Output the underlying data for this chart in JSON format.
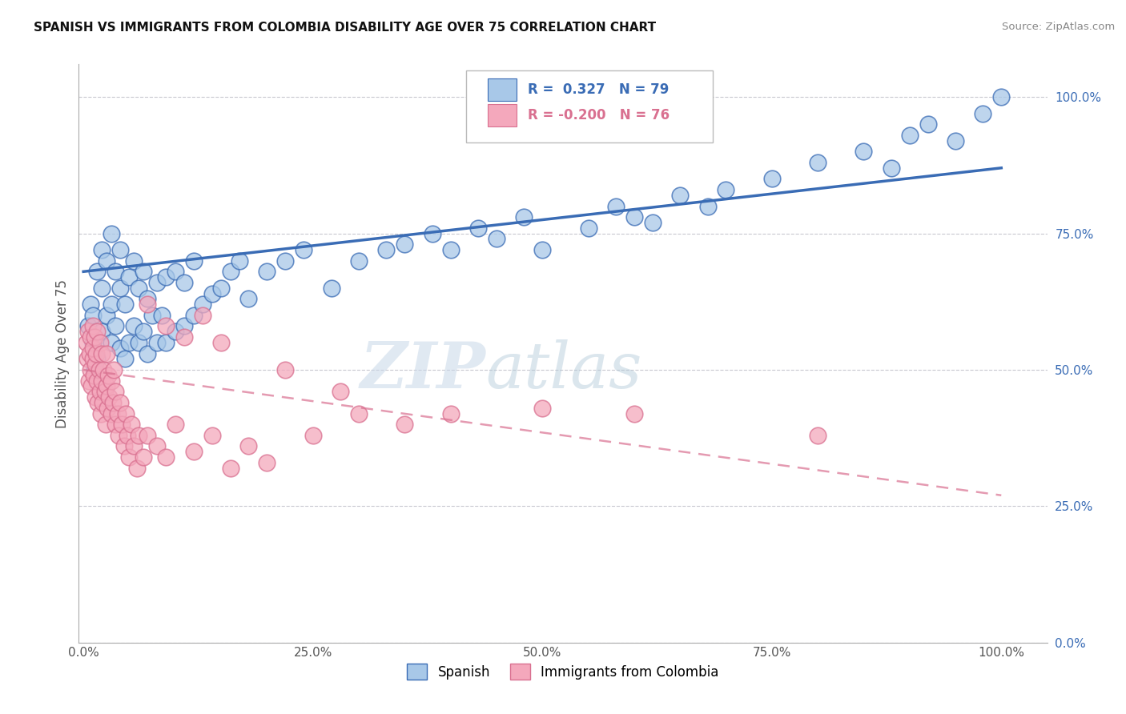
{
  "title": "SPANISH VS IMMIGRANTS FROM COLOMBIA DISABILITY AGE OVER 75 CORRELATION CHART",
  "source": "Source: ZipAtlas.com",
  "ylabel": "Disability Age Over 75",
  "legend_label1": "Spanish",
  "legend_label2": "Immigrants from Colombia",
  "R1": 0.327,
  "N1": 79,
  "R2": -0.2,
  "N2": 76,
  "color_blue": "#a8c8e8",
  "color_pink": "#f4a8bc",
  "color_blue_line": "#3a6cb5",
  "color_pink_line": "#d97090",
  "watermark_zip": "ZIP",
  "watermark_atlas": "atlas",
  "blue_trend_x": [
    0.0,
    1.0
  ],
  "blue_trend_y": [
    0.68,
    0.87
  ],
  "pink_trend_x": [
    0.0,
    1.0
  ],
  "pink_trend_y": [
    0.5,
    0.27
  ],
  "blue_x": [
    0.005,
    0.008,
    0.01,
    0.01,
    0.012,
    0.015,
    0.015,
    0.02,
    0.02,
    0.02,
    0.025,
    0.025,
    0.03,
    0.03,
    0.03,
    0.035,
    0.035,
    0.04,
    0.04,
    0.04,
    0.045,
    0.045,
    0.05,
    0.05,
    0.055,
    0.055,
    0.06,
    0.06,
    0.065,
    0.065,
    0.07,
    0.07,
    0.075,
    0.08,
    0.08,
    0.085,
    0.09,
    0.09,
    0.1,
    0.1,
    0.11,
    0.11,
    0.12,
    0.12,
    0.13,
    0.14,
    0.15,
    0.16,
    0.17,
    0.18,
    0.2,
    0.22,
    0.24,
    0.27,
    0.3,
    0.33,
    0.35,
    0.38,
    0.4,
    0.43,
    0.45,
    0.48,
    0.5,
    0.55,
    0.58,
    0.6,
    0.65,
    0.68,
    0.7,
    0.75,
    0.8,
    0.85,
    0.88,
    0.9,
    0.92,
    0.95,
    0.98,
    1.0,
    0.62
  ],
  "blue_y": [
    0.58,
    0.62,
    0.55,
    0.6,
    0.5,
    0.52,
    0.68,
    0.57,
    0.72,
    0.65,
    0.6,
    0.7,
    0.55,
    0.62,
    0.75,
    0.58,
    0.68,
    0.54,
    0.65,
    0.72,
    0.52,
    0.62,
    0.55,
    0.67,
    0.58,
    0.7,
    0.55,
    0.65,
    0.57,
    0.68,
    0.53,
    0.63,
    0.6,
    0.55,
    0.66,
    0.6,
    0.55,
    0.67,
    0.57,
    0.68,
    0.58,
    0.66,
    0.6,
    0.7,
    0.62,
    0.64,
    0.65,
    0.68,
    0.7,
    0.63,
    0.68,
    0.7,
    0.72,
    0.65,
    0.7,
    0.72,
    0.73,
    0.75,
    0.72,
    0.76,
    0.74,
    0.78,
    0.72,
    0.76,
    0.8,
    0.78,
    0.82,
    0.8,
    0.83,
    0.85,
    0.88,
    0.9,
    0.87,
    0.93,
    0.95,
    0.92,
    0.97,
    1.0,
    0.77
  ],
  "pink_x": [
    0.003,
    0.004,
    0.005,
    0.006,
    0.007,
    0.008,
    0.008,
    0.009,
    0.01,
    0.01,
    0.01,
    0.011,
    0.012,
    0.013,
    0.013,
    0.014,
    0.015,
    0.015,
    0.016,
    0.017,
    0.018,
    0.018,
    0.019,
    0.02,
    0.02,
    0.021,
    0.022,
    0.023,
    0.024,
    0.025,
    0.025,
    0.026,
    0.027,
    0.028,
    0.03,
    0.03,
    0.032,
    0.033,
    0.035,
    0.035,
    0.037,
    0.038,
    0.04,
    0.042,
    0.044,
    0.046,
    0.048,
    0.05,
    0.052,
    0.055,
    0.058,
    0.06,
    0.065,
    0.07,
    0.08,
    0.09,
    0.1,
    0.12,
    0.14,
    0.16,
    0.18,
    0.2,
    0.25,
    0.3,
    0.35,
    0.4,
    0.5,
    0.6,
    0.8,
    0.13,
    0.07,
    0.09,
    0.11,
    0.15,
    0.22,
    0.28
  ],
  "pink_y": [
    0.55,
    0.52,
    0.57,
    0.48,
    0.53,
    0.5,
    0.56,
    0.47,
    0.52,
    0.58,
    0.54,
    0.49,
    0.56,
    0.51,
    0.45,
    0.53,
    0.48,
    0.57,
    0.44,
    0.5,
    0.46,
    0.55,
    0.42,
    0.48,
    0.53,
    0.44,
    0.5,
    0.46,
    0.4,
    0.47,
    0.53,
    0.43,
    0.49,
    0.45,
    0.42,
    0.48,
    0.44,
    0.5,
    0.4,
    0.46,
    0.42,
    0.38,
    0.44,
    0.4,
    0.36,
    0.42,
    0.38,
    0.34,
    0.4,
    0.36,
    0.32,
    0.38,
    0.34,
    0.38,
    0.36,
    0.34,
    0.4,
    0.35,
    0.38,
    0.32,
    0.36,
    0.33,
    0.38,
    0.42,
    0.4,
    0.42,
    0.43,
    0.42,
    0.38,
    0.6,
    0.62,
    0.58,
    0.56,
    0.55,
    0.5,
    0.46
  ],
  "ylim": [
    0.0,
    1.06
  ],
  "xlim": [
    -0.005,
    1.05
  ],
  "yticks": [
    0.0,
    0.25,
    0.5,
    0.75,
    1.0
  ],
  "xticks": [
    0.0,
    0.25,
    0.5,
    0.75,
    1.0
  ],
  "yticklabels": [
    "0.0%",
    "25.0%",
    "50.0%",
    "75.0%",
    "100.0%"
  ],
  "xticklabels": [
    "0.0%",
    "25.0%",
    "50.0%",
    "75.0%",
    "100.0%"
  ]
}
